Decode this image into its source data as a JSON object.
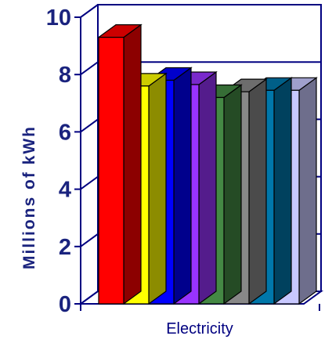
{
  "chart_data": {
    "type": "bar",
    "categories": [
      "Electricity"
    ],
    "series": [
      {
        "values": [
          9.3
        ],
        "color": "#ff0000"
      },
      {
        "values": [
          7.6
        ],
        "color": "#ffff00"
      },
      {
        "values": [
          7.8
        ],
        "color": "#0000ff"
      },
      {
        "values": [
          7.65
        ],
        "color": "#9933ff"
      },
      {
        "values": [
          7.2
        ],
        "color": "#448844"
      },
      {
        "values": [
          7.4
        ],
        "color": "#888888"
      },
      {
        "values": [
          7.45
        ],
        "color": "#0077aa"
      },
      {
        "values": [
          7.45
        ],
        "color": "#c8c8ff"
      }
    ],
    "title": "",
    "xlabel": "",
    "ylabel": "Millions of kWh",
    "ylim": [
      0,
      10
    ],
    "yticks": [
      "0",
      "2",
      "4",
      "6",
      "8",
      "10"
    ],
    "grid": true,
    "style": "3d-bar"
  }
}
